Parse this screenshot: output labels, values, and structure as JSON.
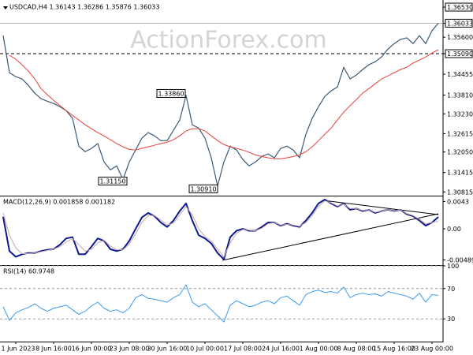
{
  "chart_data": [
    {
      "type": "line",
      "title": "USDCAD,H4  1.36143 1.36286 1.35876 1.36033",
      "watermark": "ActionForex.com",
      "categories": [
        null,
        null,
        "1 Jun 2023",
        null,
        null,
        null,
        null,
        null,
        "8 Jun 16:00",
        null,
        null,
        null,
        null,
        null,
        "16 Jun 00:00",
        null,
        null,
        null,
        null,
        null,
        "23 Jun 08:00",
        null,
        null,
        null,
        null,
        null,
        "30 Jun 16:00",
        null,
        null,
        null,
        null,
        null,
        "10 Jul 00:00",
        null,
        null,
        null,
        null,
        null,
        "17 Jul 08:00",
        null,
        null,
        null,
        null,
        null,
        "24 Jul 16:00",
        null,
        null,
        null,
        null,
        null,
        "1 Aug 00:00",
        null,
        null,
        null,
        null,
        null,
        "8 Aug 08:00",
        null,
        null,
        null,
        null,
        null,
        "15 Aug 16:00",
        null,
        null,
        null,
        null,
        null,
        "23 Aug 00:00",
        null
      ],
      "series": [
        {
          "color": "#3d5a75",
          "values": [
            1.3565,
            1.345,
            1.3438,
            1.3431,
            1.3411,
            1.3387,
            1.337,
            1.3362,
            1.3355,
            1.3345,
            1.3333,
            1.3309,
            1.3223,
            1.3206,
            1.3216,
            1.3231,
            1.3174,
            1.315,
            1.3162,
            1.312,
            1.3174,
            1.3211,
            1.3248,
            1.3265,
            1.3255,
            1.324,
            1.324,
            1.3272,
            1.3304,
            1.338,
            1.3289,
            1.3279,
            1.3248,
            1.3187,
            1.31,
            1.3174,
            1.3223,
            1.3211,
            1.3182,
            1.3162,
            1.3174,
            1.3191,
            1.3199,
            1.3187,
            1.3216,
            1.3223,
            1.3211,
            1.3187,
            1.326,
            1.3309,
            1.3345,
            1.3377,
            1.3394,
            1.3406,
            1.3467,
            1.3431,
            1.3443,
            1.346,
            1.3475,
            1.3484,
            1.3499,
            1.3523,
            1.354,
            1.3553,
            1.3558,
            1.354,
            1.3565,
            1.354,
            1.358,
            1.36033
          ]
        },
        {
          "color": "#e8403c",
          "values": [
            null,
            1.3504,
            1.3492,
            1.3475,
            1.3455,
            1.3431,
            1.3401,
            1.3382,
            1.3365,
            1.3348,
            1.3333,
            1.3318,
            1.3304,
            1.3289,
            1.3277,
            1.3265,
            1.3255,
            1.3243,
            1.3231,
            1.3221,
            1.3213,
            1.3211,
            1.3216,
            1.3221,
            1.3226,
            1.3231,
            1.3235,
            1.3243,
            1.3255,
            1.327,
            1.3277,
            1.3277,
            1.327,
            1.3255,
            1.324,
            1.3228,
            1.3221,
            1.3216,
            1.3211,
            1.3204,
            1.3196,
            1.3191,
            1.3187,
            1.3184,
            1.3184,
            1.3187,
            1.3191,
            1.3196,
            1.3206,
            1.3221,
            1.324,
            1.326,
            1.3279,
            1.3304,
            1.3328,
            1.3348,
            1.3367,
            1.3387,
            1.3401,
            1.3416,
            1.3431,
            1.344,
            1.345,
            1.346,
            1.3467,
            1.348,
            1.3489,
            1.3499,
            1.3511,
            1.3521
          ]
        }
      ],
      "ylim": [
        1.307,
        1.3675
      ],
      "yticks": [
        {
          "value": 1.3653,
          "label": "1.36530",
          "boxed": true
        },
        1.36033,
        {
          "value": 1.356,
          "label": "1.35600"
        },
        {
          "value": 1.3509,
          "label": "1.35090",
          "boxed": true,
          "line": "dashed"
        },
        1.34455,
        {
          "value": 1.3381,
          "label": "1.33810"
        },
        {
          "value": 1.3323,
          "label": "1.33230"
        },
        1.32615,
        {
          "value": 1.3205,
          "label": "1.32050"
        },
        1.31415,
        1.30815
      ],
      "annotations": [
        {
          "label": "1.33860",
          "value": 1.3386
        },
        {
          "label": "1.31150",
          "value": 1.3115
        },
        {
          "label": "1.30910",
          "value": 1.3091
        }
      ]
    },
    {
      "type": "line",
      "title": "MACD(12,26,9) 0.001858 0.001182",
      "series": [
        {
          "color": "#0b1a8c",
          "values": [
            0.0019,
            -0.0035,
            -0.0044,
            -0.004,
            -0.0038,
            -0.0038,
            -0.0035,
            -0.0033,
            -0.0032,
            -0.0025,
            -0.0015,
            -0.0013,
            -0.004,
            -0.004,
            -0.0028,
            -0.0015,
            -0.0019,
            -0.0032,
            -0.0035,
            -0.0032,
            -0.0019,
            0,
            0.0018,
            0.0025,
            0.002,
            0.001,
            0.0003,
            0.0013,
            0.0028,
            0.004,
            0.0013,
            -0.001,
            -0.0015,
            -0.0023,
            -0.0038,
            -0.0048,
            -0.0013,
            -0.0003,
            0,
            -0.0003,
            -0.0003,
            0.0003,
            0.001,
            0.001,
            0.0005,
            0.0008,
            0.0005,
            0.0003,
            0.0013,
            0.0025,
            0.004,
            0.0046,
            0.004,
            0.0035,
            0.004,
            0.003,
            0.0032,
            0.0028,
            0.003,
            0.0025,
            0.0028,
            0.003,
            0.0028,
            0.003,
            0.0023,
            0.002,
            0.0013,
            0.0005,
            0.001,
            0.001858
          ]
        },
        {
          "color": "#c9a7a7",
          "values": [
            0.0025,
            -0.001,
            -0.003,
            -0.0039,
            -0.0039,
            -0.0038,
            -0.0036,
            -0.0034,
            -0.0032,
            -0.0028,
            -0.0021,
            -0.0015,
            -0.0025,
            -0.0035,
            -0.0032,
            -0.0022,
            -0.0018,
            -0.0027,
            -0.0033,
            -0.0033,
            -0.0024,
            -0.0008,
            0.001,
            0.0021,
            0.0021,
            0.0014,
            0.0006,
            0.0009,
            0.0022,
            0.0035,
            0.0022,
            0,
            -0.0012,
            -0.0019,
            -0.0032,
            -0.0044,
            -0.0022,
            -0.0007,
            -0.0001,
            -0.0002,
            -0.0003,
            0.0001,
            0.0008,
            0.001,
            0.0006,
            0.0007,
            0.0006,
            0.0004,
            0.001,
            0.0021,
            0.0035,
            0.0044,
            0.0041,
            0.0036,
            0.0039,
            0.0032,
            0.0032,
            0.0029,
            0.003,
            0.0026,
            0.0028,
            0.003,
            0.0028,
            0.003,
            0.0024,
            0.0021,
            0.0015,
            0.0008,
            0.001,
            0.001182
          ]
        }
      ],
      "ylim": [
        -0.0057,
        0.0051
      ],
      "yticks": [
        0.0043,
        {
          "value": 0,
          "label": "0.00"
        },
        -0.004895
      ]
    },
    {
      "type": "line",
      "title": "RSI(14) 60.9748",
      "series": [
        {
          "color": "#3b9cf0",
          "values": [
            46,
            28,
            38,
            42,
            45,
            50,
            44,
            40,
            44,
            46,
            48,
            42,
            36,
            40,
            47,
            52,
            44,
            40,
            42,
            38,
            44,
            58,
            62,
            57,
            56,
            54,
            52,
            58,
            62,
            75,
            52,
            46,
            50,
            42,
            34,
            26,
            48,
            54,
            50,
            46,
            48,
            52,
            54,
            50,
            58,
            60,
            54,
            48,
            62,
            66,
            68,
            65,
            66,
            64,
            72,
            58,
            62,
            64,
            62,
            63,
            60,
            66,
            64,
            62,
            60,
            56,
            64,
            52,
            62,
            60.9748
          ]
        }
      ],
      "ylim": [
        0,
        100
      ],
      "yticks": [
        100,
        70,
        30
      ],
      "grid": "dashed"
    }
  ]
}
